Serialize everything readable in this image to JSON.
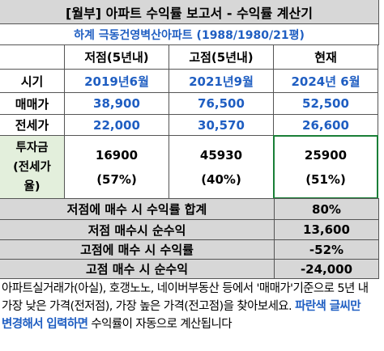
{
  "title": "[월부] 아파트 수익률 보고서 - 수익률 계산기",
  "apartment": "하계 극동건영벽산아파트 (1988/1980/21평)",
  "columns": [
    "저점(5년내)",
    "고점(5년내)",
    "현재"
  ],
  "rows": {
    "period": {
      "label": "시기",
      "values": [
        "2019년6월",
        "2021년9월",
        "2024년 6월"
      ]
    },
    "sale": {
      "label": "매매가",
      "values": [
        "38,900",
        "76,500",
        "52,500"
      ]
    },
    "jeonse": {
      "label": "전세가",
      "values": [
        "22,000",
        "30,570",
        "26,600"
      ]
    },
    "investment": {
      "label_line1": "투자금",
      "label_line2": "(전세가",
      "label_line3": "율)",
      "amounts": [
        "16900",
        "45930",
        "25900"
      ],
      "ratios": [
        "(57%)",
        "(40%)",
        "(51%)"
      ]
    }
  },
  "summary": [
    {
      "label": "저점에 매수 시 수익률 합계",
      "value": "80%"
    },
    {
      "label": "저점 매수시 순수익",
      "value": "13,600"
    },
    {
      "label": "고점에 매수 시 수익률",
      "value": "-52%"
    },
    {
      "label": "고점 매수 시 순수익",
      "value": "-24,000"
    }
  ],
  "note": {
    "part1": "아파트실거래가(아실), 호갱노노, 네이버부동산 등에서 '매매가'기준으로 5년 내 가장 낮은 가격(전저점), 가장 높은 가격(전고점)을 찾아보세요. ",
    "highlight": "파란색 글씨만 변경해서 입력하면",
    "part2": " 수익률이 자동으로 계산됩니다"
  },
  "colors": {
    "blue_text": "#1f5ec2",
    "header_gray": "#d7d7d7",
    "mint": "#e3efdc",
    "selection_green": "#1a7f37"
  }
}
